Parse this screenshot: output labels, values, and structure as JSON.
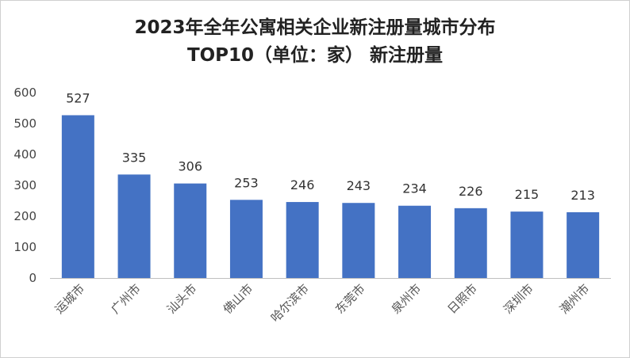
{
  "chart_data": {
    "type": "bar",
    "title": "2023年全年公寓相关企业新注册量城市分布",
    "subtitle": "TOP10（单位：家） 新注册量",
    "categories": [
      "运城市",
      "广州市",
      "汕头市",
      "佛山市",
      "哈尔滨市",
      "东莞市",
      "泉州市",
      "日照市",
      "深圳市",
      "潮州市"
    ],
    "values": [
      527,
      335,
      306,
      253,
      246,
      243,
      234,
      226,
      215,
      213
    ],
    "data_labels": [
      "527",
      "335",
      "306",
      "253",
      "246",
      "243",
      "234",
      "226",
      "215",
      "213"
    ],
    "ylim": [
      0,
      600
    ],
    "yticks": [
      "0",
      "100",
      "200",
      "300",
      "400",
      "500",
      "600"
    ],
    "xlabel": "",
    "ylabel": "",
    "grid": false,
    "legend": "none",
    "bar_color": "#4472C4"
  }
}
